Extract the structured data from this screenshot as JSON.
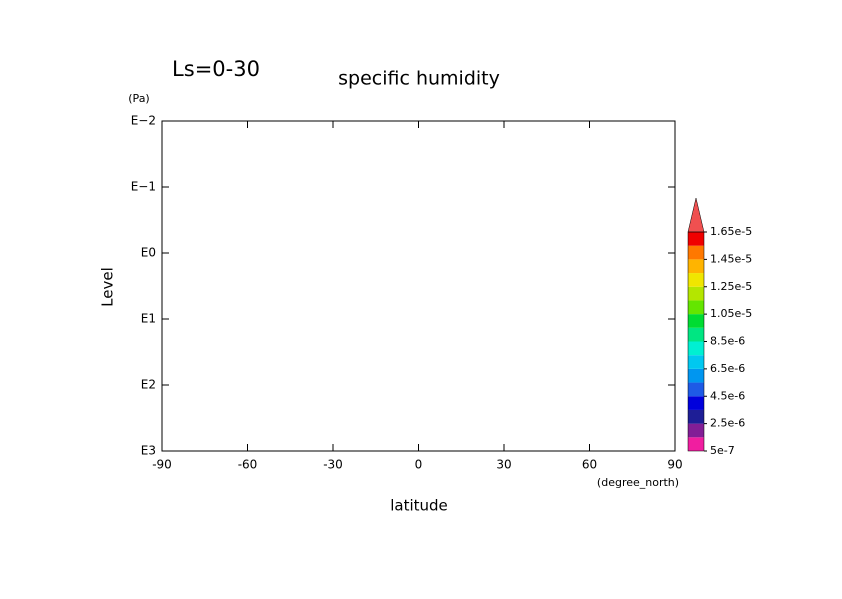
{
  "chart_data": {
    "type": "contour",
    "title": "specific humidity",
    "annotation": "Ls=0-30",
    "xlabel": "latitude",
    "xunit": "(degree_north)",
    "ylabel": "Level",
    "yunit": "(Pa)",
    "xlim": [
      -90,
      90
    ],
    "xticks": [
      -90,
      -60,
      -30,
      0,
      30,
      60,
      90
    ],
    "yscale": "log",
    "ylim": [
      1000,
      0.01
    ],
    "yticks": [
      {
        "value": 1000,
        "label": "E3"
      },
      {
        "value": 100,
        "label": "E2"
      },
      {
        "value": 10,
        "label": "E1"
      },
      {
        "value": 1,
        "label": "E0"
      },
      {
        "value": 0.1,
        "label": "E−1"
      },
      {
        "value": 0.01,
        "label": "E−2"
      }
    ],
    "colorbar": {
      "ticks": [
        {
          "value": 5e-07,
          "label": "5e-7"
        },
        {
          "value": 2.5e-06,
          "label": "2.5e-6"
        },
        {
          "value": 4.5e-06,
          "label": "4.5e-6"
        },
        {
          "value": 6.5e-06,
          "label": "6.5e-6"
        },
        {
          "value": 8.5e-06,
          "label": "8.5e-6"
        },
        {
          "value": 1.05e-05,
          "label": "1.05e-5"
        },
        {
          "value": 1.25e-05,
          "label": "1.25e-5"
        },
        {
          "value": 1.45e-05,
          "label": "1.45e-5"
        },
        {
          "value": 1.65e-05,
          "label": "1.65e-5"
        }
      ],
      "colors": [
        "#f01ea0",
        "#821e96",
        "#1e1e96",
        "#0000dc",
        "#1e5ae6",
        "#0096f0",
        "#00c8f0",
        "#00f0d2",
        "#00e682",
        "#00dc32",
        "#64e600",
        "#b4e600",
        "#f0e600",
        "#ffb400",
        "#ff7800",
        "#f00000"
      ],
      "over_color": "#f05050"
    }
  }
}
